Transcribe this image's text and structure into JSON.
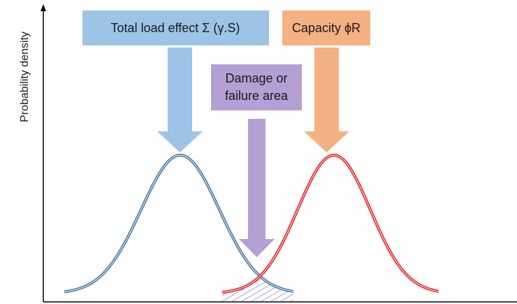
{
  "axis": {
    "y_label": "Probability density"
  },
  "boxes": {
    "load": "Total load effect Σ (γ.S)",
    "capacity": "Capacity ϕR",
    "damage": [
      "Damage or",
      "failure area"
    ]
  }
}
